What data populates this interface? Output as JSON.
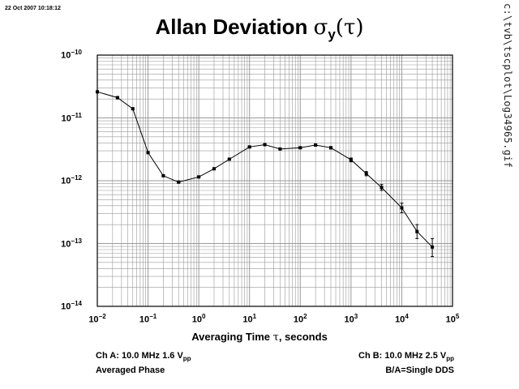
{
  "header": {
    "timestamp": "22 Oct 2007 10:18:12",
    "title_text": "Allan Deviation ",
    "title_symbol": "σ",
    "title_sub": "y",
    "title_arg": "(τ)",
    "file_path": "c:\\tvb\\tscplot\\Log34965.gif"
  },
  "chart_data": {
    "type": "line",
    "title": "Allan Deviation σy(τ)",
    "xlabel": "Averaging Time τ, seconds",
    "ylabel": "",
    "xscale": "log",
    "yscale": "log",
    "xlim": [
      0.01,
      100000
    ],
    "ylim": [
      1e-14,
      1e-10
    ],
    "grid": true,
    "x_tick_labels": [
      {
        "base": "10",
        "exp": "−2"
      },
      {
        "base": "10",
        "exp": "−1"
      },
      {
        "base": "10",
        "exp": "0"
      },
      {
        "base": "10",
        "exp": "1"
      },
      {
        "base": "10",
        "exp": "2"
      },
      {
        "base": "10",
        "exp": "3"
      },
      {
        "base": "10",
        "exp": "4"
      },
      {
        "base": "10",
        "exp": "5"
      }
    ],
    "y_tick_labels": [
      {
        "base": "10",
        "exp": "−10"
      },
      {
        "base": "10",
        "exp": "−11"
      },
      {
        "base": "10",
        "exp": "−12"
      },
      {
        "base": "10",
        "exp": "−13"
      },
      {
        "base": "10",
        "exp": "−14"
      }
    ],
    "series": [
      {
        "x": [
          0.01,
          0.025,
          0.05,
          0.1,
          0.2,
          0.4,
          1,
          2,
          4,
          10,
          20,
          40,
          100,
          200,
          400,
          1000,
          2000,
          4000,
          10000,
          20000,
          40000
        ],
        "y": [
          2.6e-11,
          2.1e-11,
          1.4e-11,
          2.8e-12,
          1.2e-12,
          9.5e-13,
          1.15e-12,
          1.55e-12,
          2.2e-12,
          3.45e-12,
          3.75e-12,
          3.2e-12,
          3.35e-12,
          3.7e-12,
          3.35e-12,
          2.15e-12,
          1.3e-12,
          7.8e-13,
          3.7e-13,
          1.55e-13,
          8.8e-14
        ],
        "err_low": [
          2.55e-11,
          2e-11,
          1.35e-11,
          2.75e-12,
          1.18e-12,
          9.3e-13,
          1.13e-12,
          1.52e-12,
          2.15e-12,
          3.4e-12,
          3.65e-12,
          3.12e-12,
          3.25e-12,
          3.55e-12,
          3.2e-12,
          2e-12,
          1.2e-12,
          7e-13,
          3.1e-13,
          1.2e-13,
          6.2e-14
        ],
        "err_high": [
          2.65e-11,
          2.2e-11,
          1.45e-11,
          2.85e-12,
          1.22e-12,
          9.7e-13,
          1.17e-12,
          1.58e-12,
          2.25e-12,
          3.5e-12,
          3.85e-12,
          3.28e-12,
          3.45e-12,
          3.85e-12,
          3.5e-12,
          2.3e-12,
          1.4e-12,
          8.7e-13,
          4.4e-13,
          2e-13,
          1.2e-13
        ]
      }
    ]
  },
  "footer": {
    "left_line1": "Ch A: 10.0 MHz 1.6 V",
    "left_line1_sub": "pp",
    "left_line2": "Averaged Phase",
    "right_line1": "Ch B: 10.0 MHz 2.5 V",
    "right_line1_sub": "pp",
    "right_line2": "B/A=Single DDS"
  },
  "colors": {
    "grid": "#9a9a9a",
    "line": "#000000"
  }
}
